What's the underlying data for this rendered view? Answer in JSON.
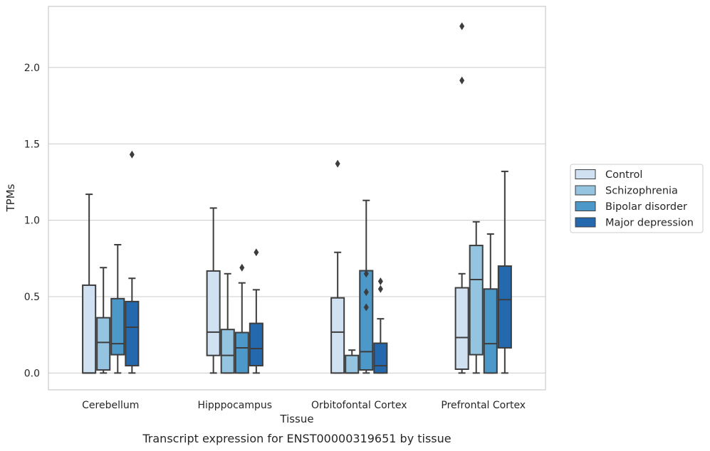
{
  "caption": "Transcript expression for ENST00000319651 by tissue",
  "chart_data": {
    "type": "box",
    "xlabel": "Tissue",
    "ylabel": "TPMs",
    "ylim": [
      -0.11,
      2.4
    ],
    "yticks": [
      "0.0",
      "0.5",
      "1.0",
      "1.5",
      "2.0"
    ],
    "ytick_values": [
      0.0,
      0.5,
      1.0,
      1.5,
      2.0
    ],
    "grid": "horizontal",
    "legend_position": "right",
    "categories": [
      "Cerebellum",
      "Hipppocampus",
      "Orbitofontal Cortex",
      "Prefrontal Cortex"
    ],
    "series": [
      {
        "name": "Control",
        "color": "#d0e1f2",
        "boxes": [
          {
            "whislo": 0.0,
            "q1": 0.0,
            "med": 0.0,
            "q3": 0.575,
            "whishi": 1.17,
            "fliers": []
          },
          {
            "whislo": 0.0,
            "q1": 0.115,
            "med": 0.268,
            "q3": 0.668,
            "whishi": 1.08,
            "fliers": []
          },
          {
            "whislo": 0.0,
            "q1": 0.0,
            "med": 0.268,
            "q3": 0.492,
            "whishi": 0.79,
            "fliers": [
              1.37
            ]
          },
          {
            "whislo": 0.0,
            "q1": 0.025,
            "med": 0.232,
            "q3": 0.558,
            "whishi": 0.65,
            "fliers": [
              1.915,
              2.27
            ]
          }
        ]
      },
      {
        "name": "Schizophrenia",
        "color": "#94c4df",
        "boxes": [
          {
            "whislo": 0.0,
            "q1": 0.02,
            "med": 0.2,
            "q3": 0.362,
            "whishi": 0.69,
            "fliers": []
          },
          {
            "whislo": 0.0,
            "q1": 0.0,
            "med": 0.115,
            "q3": 0.285,
            "whishi": 0.65,
            "fliers": []
          },
          {
            "whislo": 0.0,
            "q1": 0.0,
            "med": 0.0,
            "q3": 0.115,
            "whishi": 0.15,
            "fliers": []
          },
          {
            "whislo": 0.0,
            "q1": 0.12,
            "med": 0.612,
            "q3": 0.835,
            "whishi": 0.99,
            "fliers": []
          }
        ]
      },
      {
        "name": "Bipolar disorder",
        "color": "#4b98c9",
        "boxes": [
          {
            "whislo": 0.0,
            "q1": 0.12,
            "med": 0.192,
            "q3": 0.487,
            "whishi": 0.84,
            "fliers": []
          },
          {
            "whislo": 0.0,
            "q1": 0.0,
            "med": 0.165,
            "q3": 0.265,
            "whishi": 0.59,
            "fliers": [
              0.69
            ]
          },
          {
            "whislo": 0.0,
            "q1": 0.02,
            "med": 0.14,
            "q3": 0.67,
            "whishi": 1.13,
            "fliers": [
              0.43,
              0.53,
              0.65
            ]
          },
          {
            "whislo": 0.0,
            "q1": 0.0,
            "med": 0.192,
            "q3": 0.55,
            "whishi": 0.91,
            "fliers": []
          }
        ]
      },
      {
        "name": "Major depression",
        "color": "#2469ad",
        "boxes": [
          {
            "whislo": 0.0,
            "q1": 0.048,
            "med": 0.3,
            "q3": 0.468,
            "whishi": 0.62,
            "fliers": [
              1.43
            ]
          },
          {
            "whislo": 0.0,
            "q1": 0.048,
            "med": 0.16,
            "q3": 0.325,
            "whishi": 0.545,
            "fliers": [
              0.79
            ]
          },
          {
            "whislo": 0.0,
            "q1": 0.0,
            "med": 0.048,
            "q3": 0.195,
            "whishi": 0.355,
            "fliers": [
              0.55,
              0.6
            ]
          },
          {
            "whislo": 0.0,
            "q1": 0.165,
            "med": 0.48,
            "q3": 0.7,
            "whishi": 1.32,
            "fliers": []
          }
        ]
      }
    ]
  }
}
